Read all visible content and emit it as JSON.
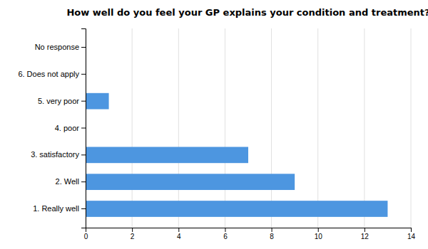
{
  "chart_data": {
    "type": "bar",
    "orientation": "horizontal",
    "title": "How well do you feel your GP explains your condition and treatment?",
    "categories": [
      "1. Really well",
      "2. Well",
      "3. satisfactory",
      "4. poor",
      "5. very poor",
      "6. Does not apply",
      "No response"
    ],
    "values": [
      13,
      9,
      7,
      0,
      1,
      0,
      0
    ],
    "color": "#4d96e0",
    "xlim": [
      0,
      14
    ],
    "xticks": [
      0,
      2,
      4,
      6,
      8,
      10,
      12,
      14
    ],
    "grid": true
  }
}
